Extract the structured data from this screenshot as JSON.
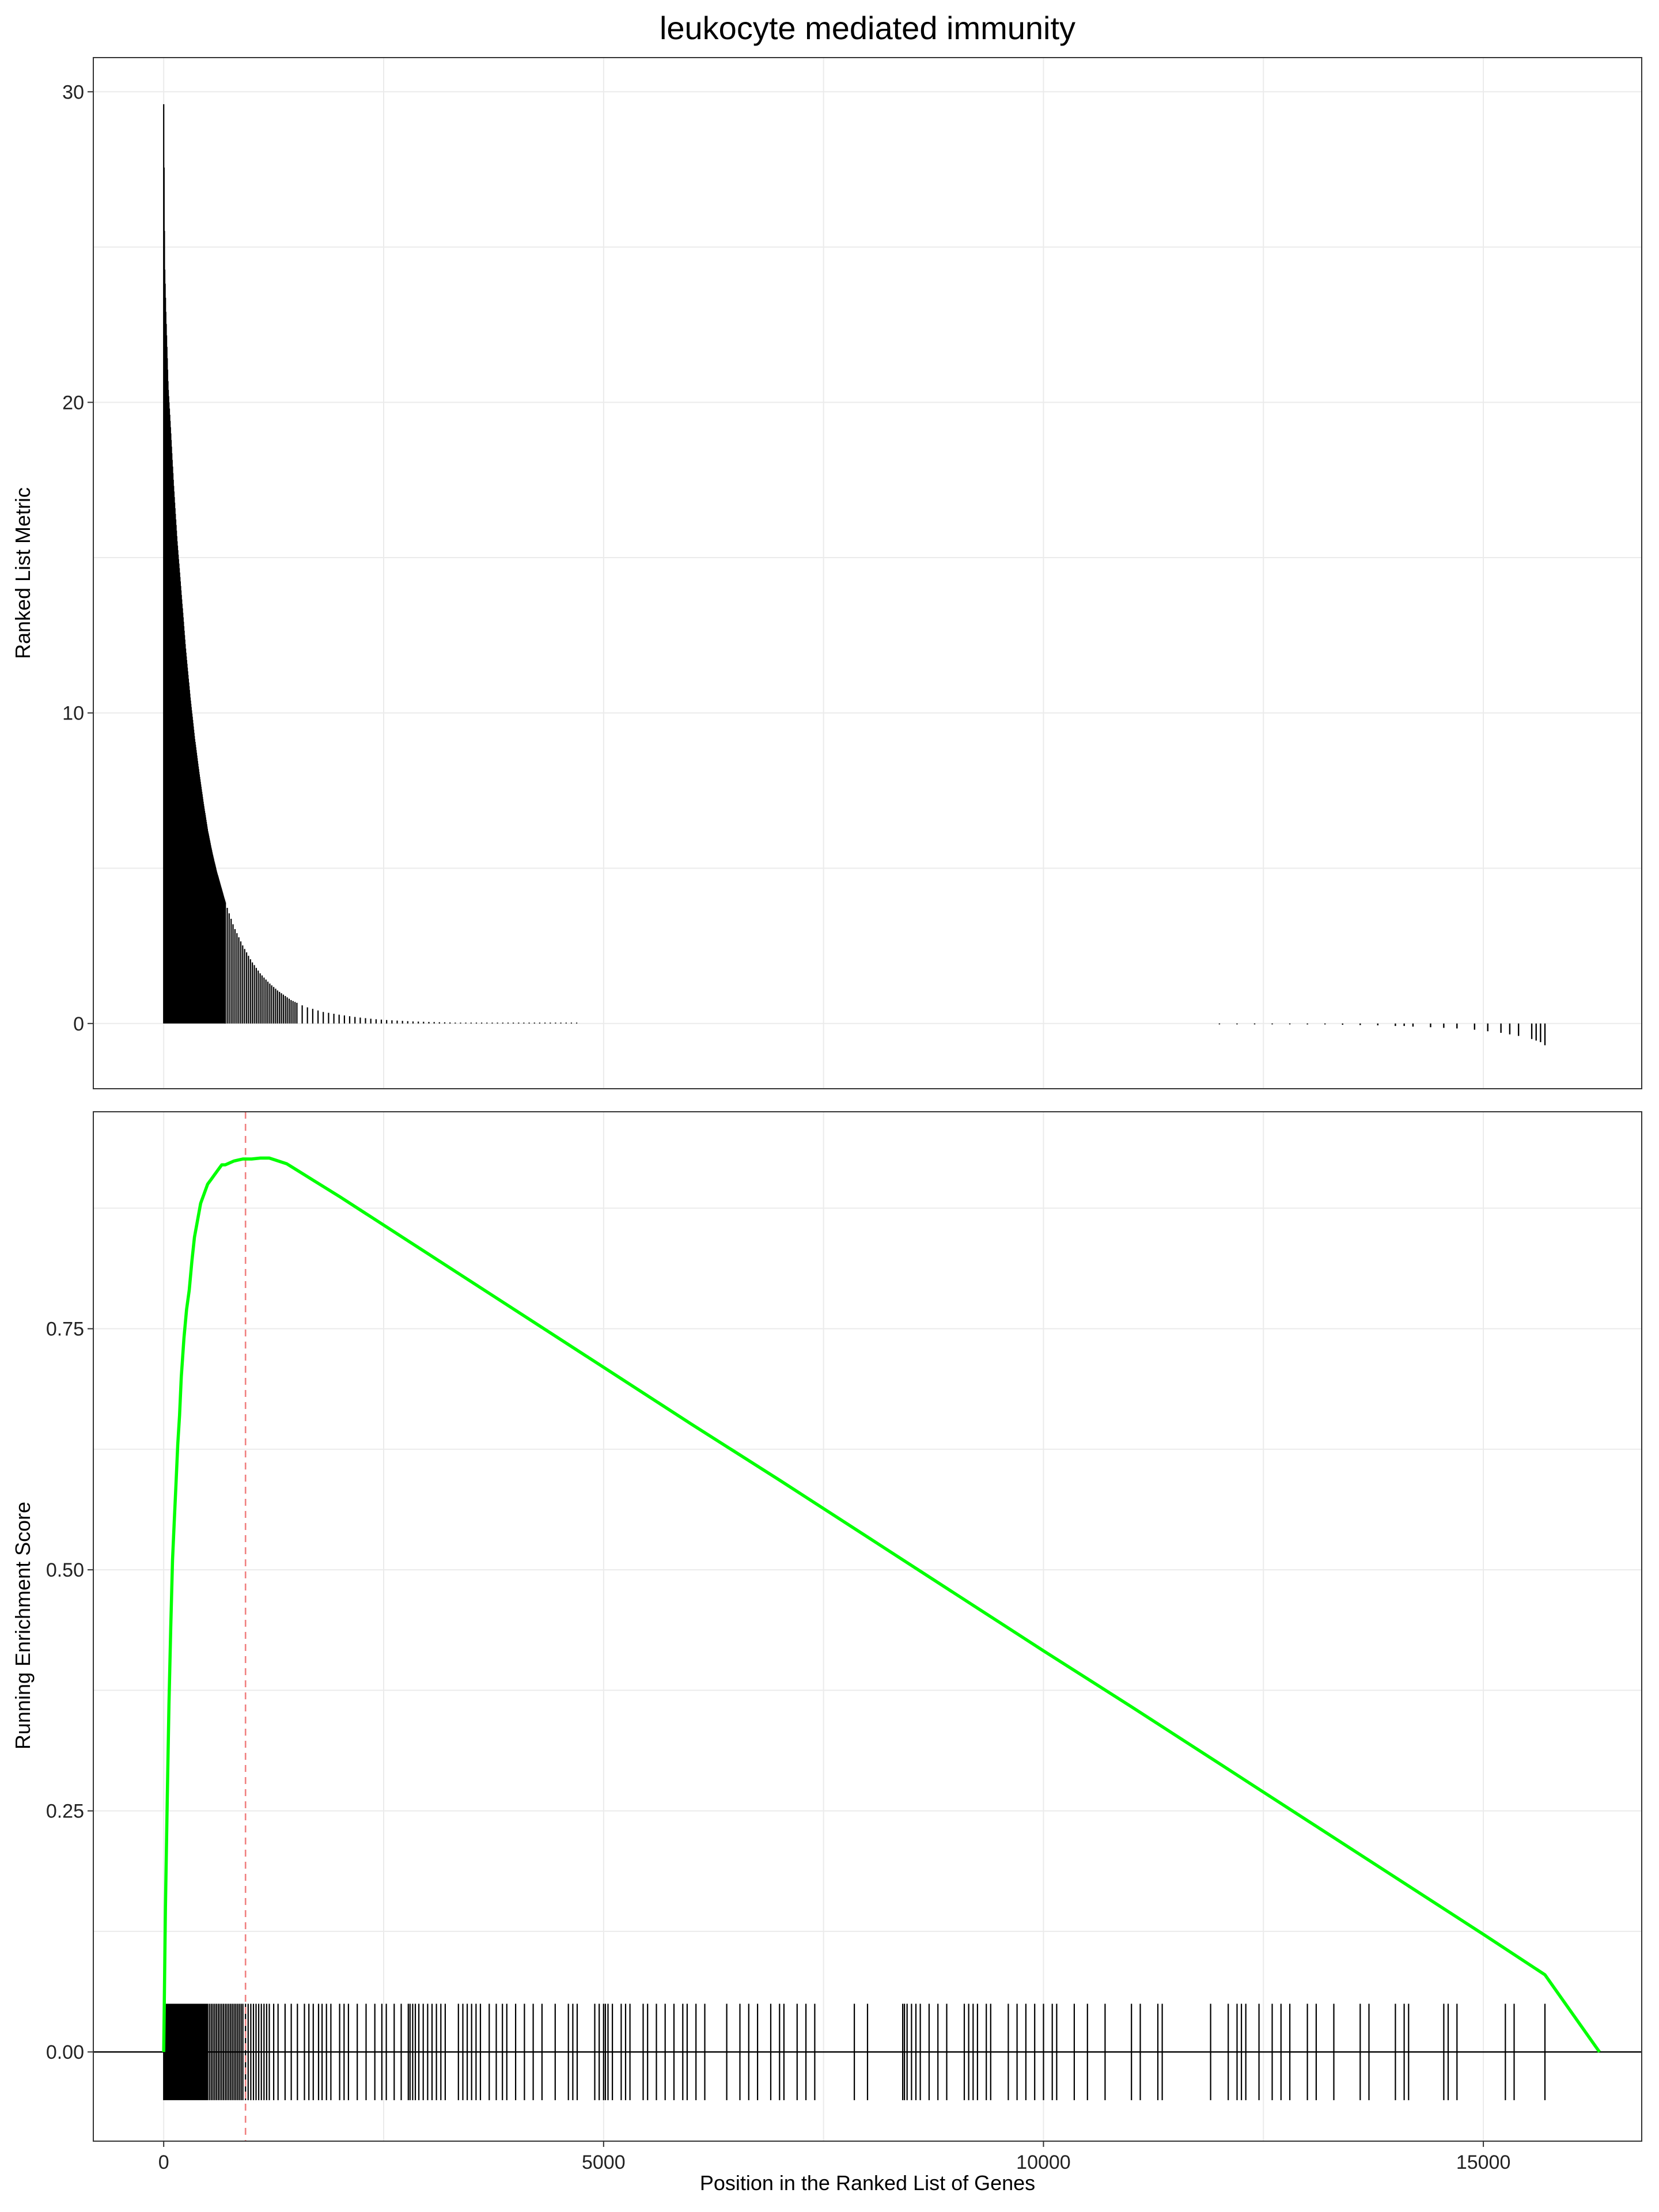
{
  "chart_data": [
    {
      "panel": "ranked-metric",
      "type": "bar",
      "title": "leukocyte mediated immunity",
      "ylabel": "Ranked List Metric",
      "xlim": [
        -800,
        16800
      ],
      "ylim": [
        -2.1,
        31.1
      ],
      "y_ticks": [
        0,
        10,
        20,
        30
      ],
      "y_tick_labels": [
        "0",
        "10",
        "20",
        "30"
      ],
      "x_gridlines": [
        0,
        2500,
        5000,
        7500,
        10000,
        12500,
        15000
      ],
      "y_gridlines": [
        0,
        5,
        10,
        15,
        20,
        25,
        30
      ],
      "grid": true,
      "metric_curve": {
        "x": [
          0,
          10,
          25,
          50,
          80,
          110,
          150,
          200,
          250,
          300,
          350,
          400,
          450,
          500,
          550,
          600,
          700,
          800,
          900,
          1000,
          1100,
          1200,
          1300,
          1450,
          1600,
          1800,
          2000,
          2200,
          2400,
          2600,
          2800,
          3000,
          3300,
          3600,
          4000,
          4500,
          5000
        ],
        "values": [
          29.6,
          24.5,
          22.8,
          20.5,
          19.0,
          17.4,
          15.6,
          13.8,
          12.0,
          10.5,
          9.2,
          8.1,
          7.1,
          6.2,
          5.5,
          4.9,
          3.9,
          3.1,
          2.5,
          2.0,
          1.6,
          1.3,
          1.05,
          0.75,
          0.55,
          0.38,
          0.28,
          0.2,
          0.14,
          0.1,
          0.07,
          0.05,
          0.03,
          0.02,
          0.01,
          0.005,
          0.0
        ]
      },
      "negative_tail": {
        "x": [
          12000,
          12200,
          12400,
          12600,
          12800,
          13000,
          13200,
          13400,
          13600,
          13800,
          14000,
          14100,
          14200,
          14400,
          14550,
          14700,
          14900,
          15050,
          15200,
          15300,
          15400,
          15550,
          15600,
          15650,
          15700
        ],
        "values": [
          -0.01,
          -0.01,
          -0.01,
          -0.02,
          -0.02,
          -0.03,
          -0.03,
          -0.04,
          -0.05,
          -0.06,
          -0.08,
          -0.08,
          -0.1,
          -0.12,
          -0.14,
          -0.16,
          -0.2,
          -0.25,
          -0.3,
          -0.35,
          -0.4,
          -0.5,
          -0.55,
          -0.6,
          -0.7
        ]
      }
    },
    {
      "panel": "running-score",
      "type": "line",
      "xlabel": "Position in the Ranked List of Genes",
      "ylabel": "Running Enrichment Score",
      "xlim": [
        -800,
        16800
      ],
      "ylim": [
        -0.0925,
        0.975
      ],
      "x_ticks": [
        0,
        5000,
        10000,
        15000
      ],
      "x_tick_labels": [
        "0",
        "5000",
        "10000",
        "15000"
      ],
      "y_ticks": [
        0,
        0.25,
        0.5,
        0.75
      ],
      "y_tick_labels": [
        "0.00",
        "0.25",
        "0.50",
        "0.75"
      ],
      "x_gridlines": [
        0,
        2500,
        5000,
        7500,
        10000,
        12500,
        15000
      ],
      "y_gridlines": [
        0,
        0.125,
        0.25,
        0.375,
        0.5,
        0.625,
        0.75,
        0.875
      ],
      "grid": true,
      "line_color": "#00ff00",
      "zero_line": 0,
      "peak_marker": {
        "x": 930,
        "color": "#f08080",
        "style": "dashed"
      },
      "series": [
        {
          "x": [
            0,
            20,
            40,
            60,
            80,
            100,
            120,
            140,
            160,
            180,
            200,
            230,
            260,
            290,
            320,
            350,
            380,
            420,
            460,
            500,
            540,
            580,
            620,
            660,
            700,
            750,
            800,
            850,
            900,
            950,
            1000,
            1100,
            1200,
            1400,
            1700,
            2000,
            3000,
            4000,
            5000,
            6000,
            7000,
            8000,
            9000,
            10000,
            11000,
            12000,
            13000,
            14000,
            15000,
            15700,
            16320
          ],
          "values": [
            0.0,
            0.15,
            0.26,
            0.36,
            0.44,
            0.51,
            0.55,
            0.59,
            0.63,
            0.66,
            0.7,
            0.74,
            0.77,
            0.79,
            0.82,
            0.845,
            0.86,
            0.88,
            0.89,
            0.9,
            0.905,
            0.91,
            0.915,
            0.92,
            0.92,
            0.922,
            0.924,
            0.925,
            0.926,
            0.926,
            0.926,
            0.927,
            0.927,
            0.921,
            0.904,
            0.887,
            0.828,
            0.769,
            0.71,
            0.651,
            0.593,
            0.534,
            0.475,
            0.416,
            0.358,
            0.299,
            0.24,
            0.181,
            0.122,
            0.08,
            0.0
          ]
        }
      ],
      "hits": [
        0,
        5,
        10,
        15,
        20,
        25,
        30,
        40,
        50,
        60,
        70,
        80,
        90,
        100,
        110,
        120,
        130,
        140,
        150,
        160,
        170,
        180,
        190,
        200,
        210,
        220,
        230,
        240,
        250,
        260,
        270,
        280,
        290,
        300,
        310,
        320,
        330,
        340,
        350,
        360,
        370,
        380,
        390,
        400,
        410,
        420,
        430,
        440,
        450,
        460,
        470,
        480,
        490,
        500,
        520,
        540,
        560,
        580,
        600,
        620,
        640,
        660,
        680,
        700,
        720,
        740,
        760,
        780,
        800,
        820,
        840,
        860,
        880,
        900,
        930,
        960,
        990,
        1020,
        1050,
        1080,
        1110,
        1140,
        1170,
        1200,
        1250,
        1300,
        1380,
        1450,
        1520,
        1600,
        1650,
        1700,
        1760,
        1800,
        1850,
        1900,
        2000,
        2050,
        2100,
        2200,
        2300,
        2400,
        2480,
        2530,
        2620,
        2700,
        2780,
        2800,
        2830,
        2860,
        2900,
        2950,
        3000,
        3050,
        3100,
        3150,
        3200,
        3350,
        3400,
        3450,
        3500,
        3550,
        3600,
        3700,
        3780,
        3850,
        3900,
        4000,
        4100,
        4200,
        4300,
        4450,
        4600,
        4650,
        4700,
        4900,
        4950,
        5000,
        5020,
        5050,
        5100,
        5200,
        5250,
        5300,
        5450,
        5500,
        5600,
        5700,
        5800,
        5900,
        5950,
        6050,
        6150,
        6400,
        6550,
        6650,
        6750,
        6900,
        7000,
        7050,
        7200,
        7300,
        7400,
        7850,
        8000,
        8400,
        8420,
        8450,
        8500,
        8550,
        8600,
        8700,
        8800,
        8900,
        9100,
        9150,
        9200,
        9250,
        9350,
        9400,
        9600,
        9700,
        9800,
        9900,
        10000,
        10100,
        10150,
        10350,
        10500,
        10700,
        11000,
        11100,
        11300,
        11350,
        11900,
        12100,
        12200,
        12250,
        12300,
        12450,
        12600,
        12700,
        12800,
        13000,
        13100,
        13300,
        13600,
        13700,
        14000,
        14100,
        14150,
        14550,
        14600,
        14700,
        15250,
        15350,
        15700
      ]
    }
  ]
}
